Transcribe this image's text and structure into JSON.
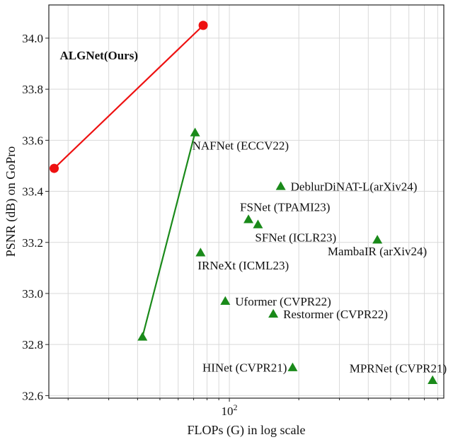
{
  "chart_data": {
    "type": "scatter",
    "xlabel": "FLOPs (G) in log scale",
    "ylabel": "PSNR (dB) on GoPro",
    "x_scale": "log",
    "xlim": [
      16.5,
      850
    ],
    "ylim": [
      32.59,
      34.13
    ],
    "x_ticks": [
      100
    ],
    "x_tick_labels": [
      "10^2"
    ],
    "y_ticks": [
      32.6,
      32.8,
      33.0,
      33.2,
      33.4,
      33.6,
      33.8,
      34.0
    ],
    "y_tick_labels": [
      "32.6",
      "32.8",
      "33.0",
      "33.2",
      "33.4",
      "33.6",
      "33.8",
      "34.0"
    ],
    "grid": true,
    "series": [
      {
        "color": "#ee1111",
        "marker": "circle",
        "connected": true,
        "points": [
          {
            "x": 17.4,
            "y": 33.49
          },
          {
            "x": 77,
            "y": 34.05
          }
        ],
        "labels": [
          {
            "text": "ALGNet(Ours)",
            "anchor_x": 17.4,
            "anchor_y": 34.05,
            "bold": true,
            "placement": "below-start"
          }
        ]
      },
      {
        "color": "#1a8a1a",
        "marker": "triangle",
        "connected": true,
        "points": [
          {
            "x": 42,
            "y": 32.83
          },
          {
            "x": 71,
            "y": 33.63
          }
        ],
        "labels": [
          {
            "text": "NAFNet (ECCV22)",
            "anchor_x": 71,
            "anchor_y": 33.63,
            "placement": "below-right"
          }
        ]
      },
      {
        "color": "#1a8a1a",
        "marker": "triangle",
        "connected": false,
        "points": [
          {
            "x": 167,
            "y": 33.42,
            "label": "DeblurDiNAT-L(arXiv24)",
            "placement": "right"
          },
          {
            "x": 121,
            "y": 33.29,
            "label": "FSNet (TPAMI23)",
            "placement": "above-right"
          },
          {
            "x": 133,
            "y": 33.27,
            "label": "SFNet (ICLR23)",
            "placement": "below-right"
          },
          {
            "x": 438,
            "y": 33.21,
            "label": "MambaIR (arXiv24)",
            "placement": "below-left"
          },
          {
            "x": 75,
            "y": 33.16,
            "label": "IRNeXt (ICML23)",
            "placement": "below-right"
          },
          {
            "x": 96,
            "y": 32.97,
            "label": "Uformer (CVPR22)",
            "placement": "right"
          },
          {
            "x": 155,
            "y": 32.92,
            "label": "Restormer (CVPR22)",
            "placement": "right"
          },
          {
            "x": 188,
            "y": 32.71,
            "label": "HINet (CVPR21)",
            "placement": "left"
          },
          {
            "x": 760,
            "y": 32.66,
            "label": "MPRNet (CVPR21)",
            "placement": "above-left"
          }
        ]
      }
    ]
  }
}
